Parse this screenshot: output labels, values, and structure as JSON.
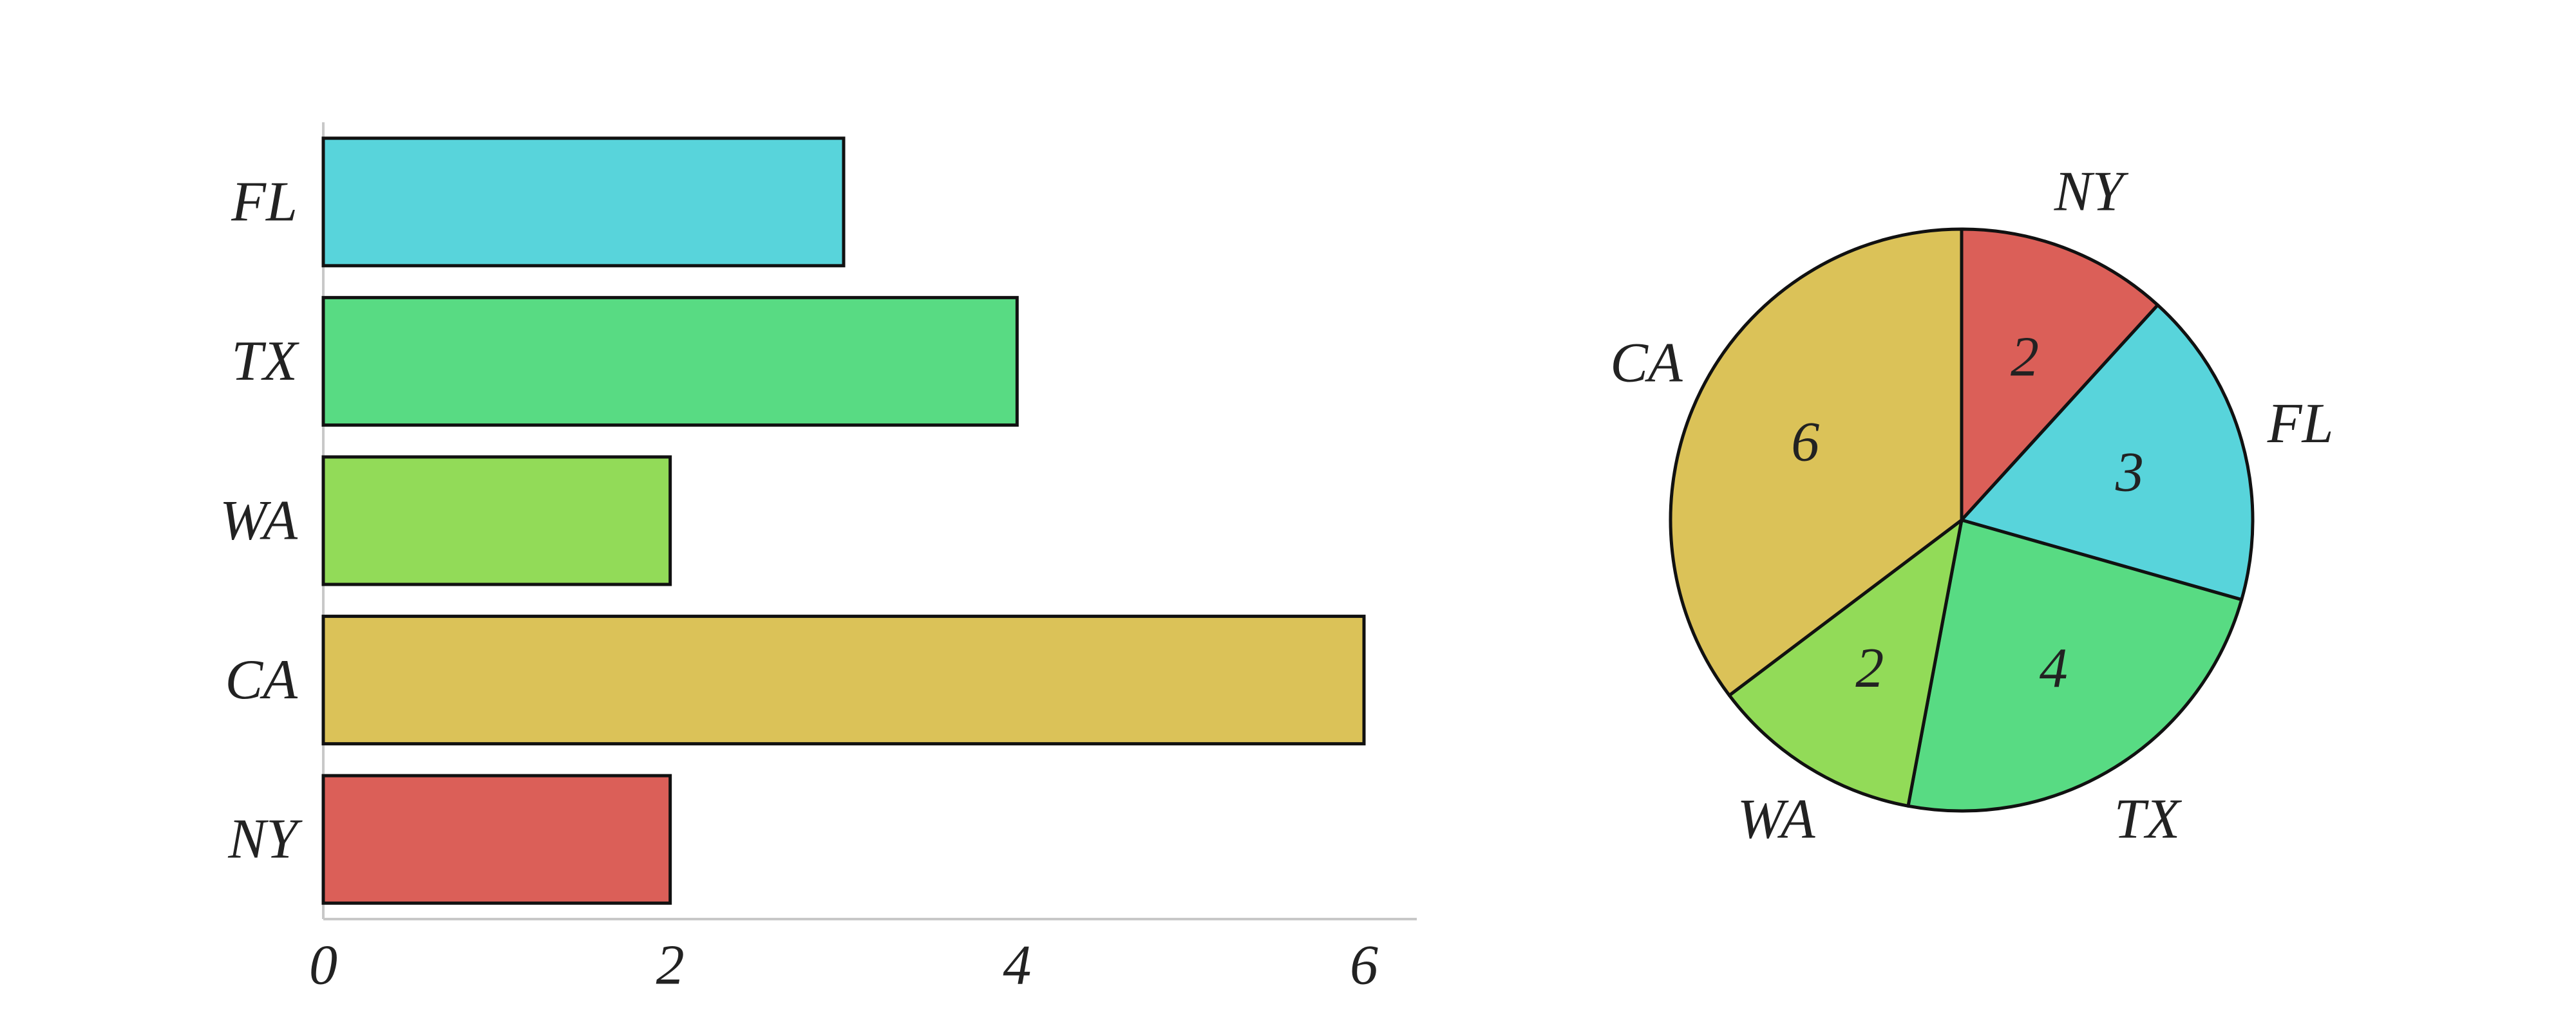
{
  "chart_data": [
    {
      "type": "bar",
      "orientation": "horizontal",
      "categories": [
        "FL",
        "TX",
        "WA",
        "CA",
        "NY"
      ],
      "values": [
        3,
        4,
        2,
        6,
        2
      ],
      "colors": [
        "#58d4db",
        "#58db83",
        "#92db58",
        "#dbc258",
        "#db5f58"
      ],
      "x_ticks": [
        "0",
        "2",
        "4",
        "6"
      ],
      "xlim": [
        0,
        6.3
      ],
      "grid": false,
      "title": "",
      "xlabel": "",
      "ylabel": ""
    },
    {
      "type": "pie",
      "labels": [
        "NY",
        "FL",
        "TX",
        "WA",
        "CA"
      ],
      "values": [
        2,
        3,
        4,
        2,
        6
      ],
      "value_labels": [
        "2",
        "3",
        "4",
        "2",
        "6"
      ],
      "colors": [
        "#db5f58",
        "#58d4db",
        "#58db83",
        "#92db58",
        "#dbc258"
      ],
      "start": "top, clockwise",
      "title": ""
    }
  ]
}
